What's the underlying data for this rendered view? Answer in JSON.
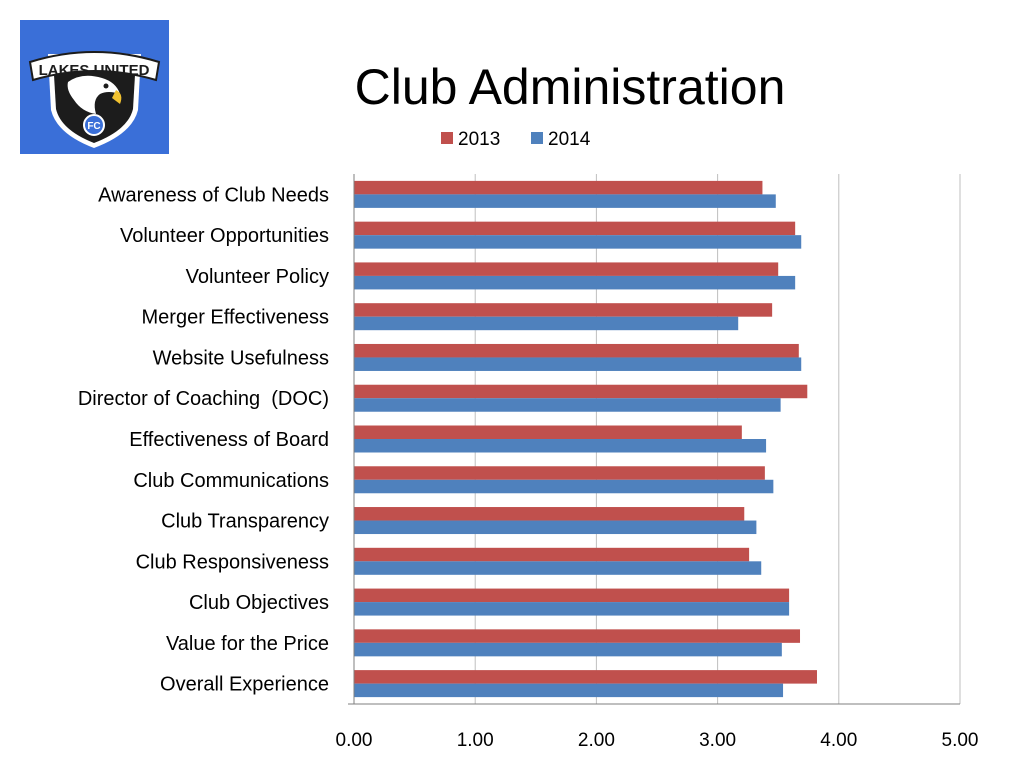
{
  "logo": {
    "text_top": "LAKES UNITED",
    "text_badge": "FC",
    "colors": {
      "background": "#3a6fd8",
      "shield": "#1c1c1c",
      "ring": "#ffffff",
      "accent": "#3a6fd8"
    }
  },
  "chart_data": {
    "type": "bar",
    "orientation": "horizontal",
    "title": "Club Administration",
    "categories": [
      "Awareness of Club Needs",
      "Volunteer Opportunities",
      "Volunteer Policy",
      "Merger Effectiveness",
      "Website Usefulness",
      "Director of Coaching  (DOC)",
      "Effectiveness of Board",
      "Club Communications",
      "Club Transparency",
      "Club Responsiveness",
      "Club Objectives",
      "Value for the Price",
      "Overall Experience"
    ],
    "series": [
      {
        "name": "2013",
        "color": "#c0504d",
        "values": [
          3.37,
          3.64,
          3.5,
          3.45,
          3.67,
          3.74,
          3.2,
          3.39,
          3.22,
          3.26,
          3.59,
          3.68,
          3.82
        ]
      },
      {
        "name": "2014",
        "color": "#4f81bd",
        "values": [
          3.48,
          3.69,
          3.64,
          3.17,
          3.69,
          3.52,
          3.4,
          3.46,
          3.32,
          3.36,
          3.59,
          3.53,
          3.54
        ]
      }
    ],
    "xlim": [
      0,
      5
    ],
    "xticks": [
      "0.00",
      "1.00",
      "2.00",
      "3.00",
      "4.00",
      "5.00"
    ],
    "grid": "vertical",
    "legend": "top"
  }
}
